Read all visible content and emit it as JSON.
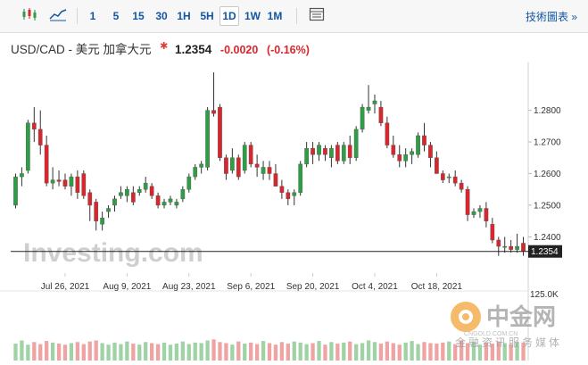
{
  "toolbar": {
    "chart_type_icons": [
      "candlestick-icon",
      "area-line-icon"
    ],
    "intervals": [
      "1",
      "5",
      "15",
      "30",
      "1H",
      "5H",
      "1D",
      "1W",
      "1M"
    ],
    "active_interval": "1D",
    "settings_icon": "table-grid-icon",
    "tools_label": "技術圖表 »"
  },
  "quote": {
    "pair": "USD/CAD - 美元 加拿大元",
    "price": "1.2354",
    "change": "-0.0020",
    "change_pct": "(-0.16%)",
    "colors": {
      "down": "#d9262d",
      "up": "#2e9e44"
    }
  },
  "watermark": "Investing.com",
  "corner_logo": {
    "main": "中金网",
    "sub": "金融资讯服务媒体",
    "url": "CNGOLD.COM.CN"
  },
  "chart_data": {
    "type": "candlestick",
    "xticks": [
      "Jul 26, 2021",
      "Aug 9, 2021",
      "Aug 23, 2021",
      "Sep 6, 2021",
      "Sep 20, 2021",
      "Oct 4, 2021",
      "Oct 18, 2021"
    ],
    "yticks": [
      "1.2800",
      "1.2700",
      "1.2600",
      "1.2500",
      "1.2400"
    ],
    "ylim": [
      1.2325,
      1.294
    ],
    "last_price_label": "1.2354",
    "last_price": 1.2354,
    "volume_label": "125.0K",
    "volume_max": 125,
    "candles": [
      [
        1.25,
        1.26,
        1.249,
        1.259
      ],
      [
        1.259,
        1.262,
        1.256,
        1.26
      ],
      [
        1.261,
        1.277,
        1.26,
        1.276
      ],
      [
        1.276,
        1.281,
        1.27,
        1.274
      ],
      [
        1.274,
        1.28,
        1.266,
        1.269
      ],
      [
        1.269,
        1.272,
        1.256,
        1.257
      ],
      [
        1.257,
        1.262,
        1.255,
        1.258
      ],
      [
        1.258,
        1.261,
        1.256,
        1.2575
      ],
      [
        1.258,
        1.26,
        1.255,
        1.256
      ],
      [
        1.256,
        1.26,
        1.253,
        1.259
      ],
      [
        1.259,
        1.261,
        1.252,
        1.254
      ],
      [
        1.26,
        1.261,
        1.252,
        1.253
      ],
      [
        1.254,
        1.255,
        1.245,
        1.25
      ],
      [
        1.251,
        1.252,
        1.242,
        1.245
      ],
      [
        1.244,
        1.248,
        1.242,
        1.246
      ],
      [
        1.248,
        1.25,
        1.246,
        1.249
      ],
      [
        1.25,
        1.253,
        1.248,
        1.252
      ],
      [
        1.253,
        1.256,
        1.252,
        1.254
      ],
      [
        1.253,
        1.256,
        1.251,
        1.255
      ],
      [
        1.254,
        1.256,
        1.25,
        1.251
      ],
      [
        1.254,
        1.256,
        1.253,
        1.255
      ],
      [
        1.255,
        1.259,
        1.254,
        1.257
      ],
      [
        1.256,
        1.257,
        1.252,
        1.253
      ],
      [
        1.253,
        1.254,
        1.249,
        1.25
      ],
      [
        1.25,
        1.252,
        1.249,
        1.251
      ],
      [
        1.251,
        1.253,
        1.25,
        1.252
      ],
      [
        1.25,
        1.252,
        1.249,
        1.251
      ],
      [
        1.252,
        1.256,
        1.251,
        1.255
      ],
      [
        1.255,
        1.26,
        1.254,
        1.259
      ],
      [
        1.259,
        1.263,
        1.258,
        1.262
      ],
      [
        1.262,
        1.264,
        1.26,
        1.263
      ],
      [
        1.262,
        1.281,
        1.261,
        1.28
      ],
      [
        1.28,
        1.292,
        1.278,
        1.279
      ],
      [
        1.281,
        1.282,
        1.264,
        1.265
      ],
      [
        1.265,
        1.266,
        1.258,
        1.26
      ],
      [
        1.261,
        1.268,
        1.26,
        1.265
      ],
      [
        1.265,
        1.266,
        1.258,
        1.259
      ],
      [
        1.261,
        1.27,
        1.26,
        1.269
      ],
      [
        1.269,
        1.27,
        1.262,
        1.263
      ],
      [
        1.263,
        1.266,
        1.259,
        1.262
      ],
      [
        1.26,
        1.264,
        1.258,
        1.262
      ],
      [
        1.262,
        1.264,
        1.258,
        1.26
      ],
      [
        1.26,
        1.263,
        1.256,
        1.256
      ],
      [
        1.256,
        1.258,
        1.252,
        1.254
      ],
      [
        1.254,
        1.255,
        1.25,
        1.252
      ],
      [
        1.253,
        1.255,
        1.25,
        1.254
      ],
      [
        1.254,
        1.264,
        1.253,
        1.263
      ],
      [
        1.263,
        1.27,
        1.262,
        1.268
      ],
      [
        1.268,
        1.27,
        1.263,
        1.266
      ],
      [
        1.266,
        1.27,
        1.264,
        1.269
      ],
      [
        1.268,
        1.269,
        1.264,
        1.266
      ],
      [
        1.265,
        1.269,
        1.262,
        1.268
      ],
      [
        1.269,
        1.27,
        1.263,
        1.264
      ],
      [
        1.264,
        1.27,
        1.263,
        1.269
      ],
      [
        1.269,
        1.272,
        1.263,
        1.265
      ],
      [
        1.265,
        1.275,
        1.264,
        1.274
      ],
      [
        1.274,
        1.282,
        1.273,
        1.281
      ],
      [
        1.28,
        1.288,
        1.279,
        1.281
      ],
      [
        1.282,
        1.285,
        1.279,
        1.283
      ],
      [
        1.281,
        1.283,
        1.275,
        1.276
      ],
      [
        1.276,
        1.278,
        1.268,
        1.269
      ],
      [
        1.269,
        1.272,
        1.265,
        1.266
      ],
      [
        1.266,
        1.269,
        1.262,
        1.264
      ],
      [
        1.264,
        1.268,
        1.262,
        1.266
      ],
      [
        1.266,
        1.268,
        1.263,
        1.267
      ],
      [
        1.266,
        1.273,
        1.265,
        1.272
      ],
      [
        1.272,
        1.276,
        1.267,
        1.269
      ],
      [
        1.269,
        1.27,
        1.262,
        1.265
      ],
      [
        1.265,
        1.267,
        1.26,
        1.26
      ],
      [
        1.26,
        1.261,
        1.257,
        1.258
      ],
      [
        1.259,
        1.26,
        1.257,
        1.259
      ],
      [
        1.259,
        1.261,
        1.256,
        1.257
      ],
      [
        1.257,
        1.258,
        1.254,
        1.255
      ],
      [
        1.255,
        1.256,
        1.245,
        1.247
      ],
      [
        1.247,
        1.249,
        1.246,
        1.248
      ],
      [
        1.248,
        1.25,
        1.246,
        1.249
      ],
      [
        1.249,
        1.251,
        1.243,
        1.245
      ],
      [
        1.244,
        1.246,
        1.238,
        1.239
      ],
      [
        1.239,
        1.24,
        1.234,
        1.237
      ],
      [
        1.237,
        1.24,
        1.235,
        1.237
      ],
      [
        1.237,
        1.239,
        1.235,
        1.236
      ],
      [
        1.236,
        1.241,
        1.235,
        1.237
      ],
      [
        1.238,
        1.24,
        1.234,
        1.2354
      ]
    ],
    "volume": [
      32,
      38,
      30,
      35,
      31,
      37,
      34,
      32,
      30,
      33,
      35,
      31,
      36,
      38,
      33,
      30,
      34,
      31,
      36,
      32,
      30,
      35,
      33,
      31,
      34,
      30,
      32,
      36,
      31,
      34,
      33,
      38,
      40,
      35,
      33,
      30,
      36,
      32,
      34,
      31,
      37,
      33,
      30,
      35,
      32,
      36,
      34,
      31,
      33,
      37,
      30,
      35,
      32,
      34,
      36,
      31,
      33,
      38,
      35,
      32,
      36,
      33,
      30,
      34,
      37,
      31,
      35,
      33,
      32,
      34,
      36,
      31,
      38,
      33,
      35,
      30,
      34,
      32,
      36,
      33,
      31,
      35,
      34
    ]
  }
}
